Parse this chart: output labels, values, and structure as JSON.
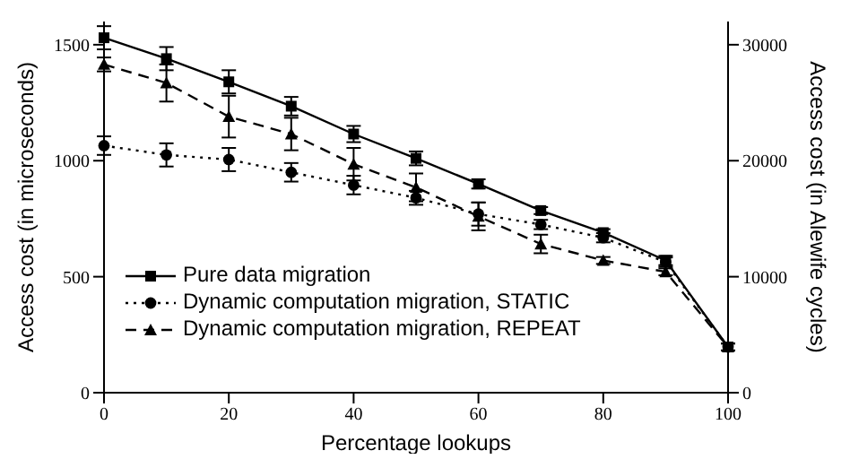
{
  "chart_data": {
    "type": "line",
    "xlabel": "Percentage lookups",
    "ylabel": "Access cost (in microseconds)",
    "y2label": "Access cost (in Alewife cycles)",
    "x": [
      0,
      10,
      20,
      30,
      40,
      50,
      60,
      70,
      80,
      90,
      100
    ],
    "series": [
      {
        "name": "Pure data migration",
        "color": "#000000",
        "marker": "square",
        "line_style": "solid",
        "values": [
          1530,
          1440,
          1340,
          1235,
          1115,
          1010,
          900,
          785,
          690,
          570,
          197
        ],
        "errors": [
          50,
          50,
          50,
          40,
          35,
          30,
          20,
          15,
          15,
          20,
          15
        ]
      },
      {
        "name": "Dynamic computation migration, STATIC",
        "color": "#000000",
        "marker": "circle",
        "line_style": "dotted",
        "values": [
          1065,
          1025,
          1005,
          950,
          895,
          840,
          770,
          725,
          668,
          563,
          197
        ],
        "errors": [
          40,
          50,
          50,
          40,
          40,
          30,
          50,
          20,
          20,
          20,
          15
        ]
      },
      {
        "name": "Dynamic computation migration, REPEAT",
        "color": "#000000",
        "marker": "triangle",
        "line_style": "dashed",
        "values": [
          1415,
          1335,
          1190,
          1115,
          985,
          885,
          760,
          641,
          570,
          521,
          197
        ],
        "errors": [
          30,
          80,
          90,
          70,
          70,
          60,
          60,
          40,
          15,
          15,
          15
        ]
      }
    ],
    "xlim": [
      0,
      100
    ],
    "xticks": [
      0,
      20,
      40,
      60,
      80,
      100
    ],
    "ylim": [
      0,
      1600
    ],
    "yticks": [
      0,
      500,
      1000,
      1500
    ],
    "y2lim": [
      0,
      32000
    ],
    "y2ticks": [
      0,
      10000,
      20000,
      30000
    ],
    "grid": false,
    "legend": "bottom left"
  }
}
